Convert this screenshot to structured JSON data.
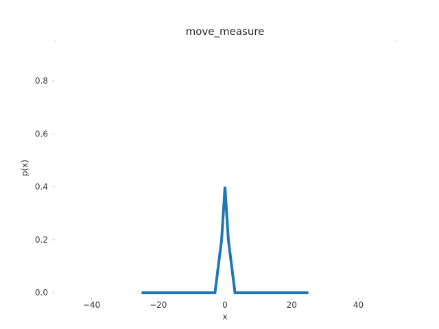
{
  "chart_data": {
    "type": "line",
    "title": "move_measure",
    "xlabel": "x",
    "ylabel": "p(x)",
    "xlim": [
      -51,
      51
    ],
    "ylim": [
      -0.01,
      0.95
    ],
    "xticks": [
      -40,
      -20,
      0,
      20,
      40
    ],
    "xtick_labels": [
      "−40",
      "−20",
      "0",
      "20",
      "40"
    ],
    "yticks": [
      0.0,
      0.2,
      0.4,
      0.6,
      0.8
    ],
    "ytick_labels": [
      "0.0",
      "0.2",
      "0.4",
      "0.6",
      "0.8"
    ],
    "grid": false,
    "series": [
      {
        "name": "p(x)",
        "color": "#1f77b4",
        "x": [
          -25,
          -3,
          -1,
          0,
          1,
          3,
          25
        ],
        "y": [
          0.0,
          0.0,
          0.2,
          0.4,
          0.2,
          0.0,
          0.0
        ]
      }
    ]
  }
}
